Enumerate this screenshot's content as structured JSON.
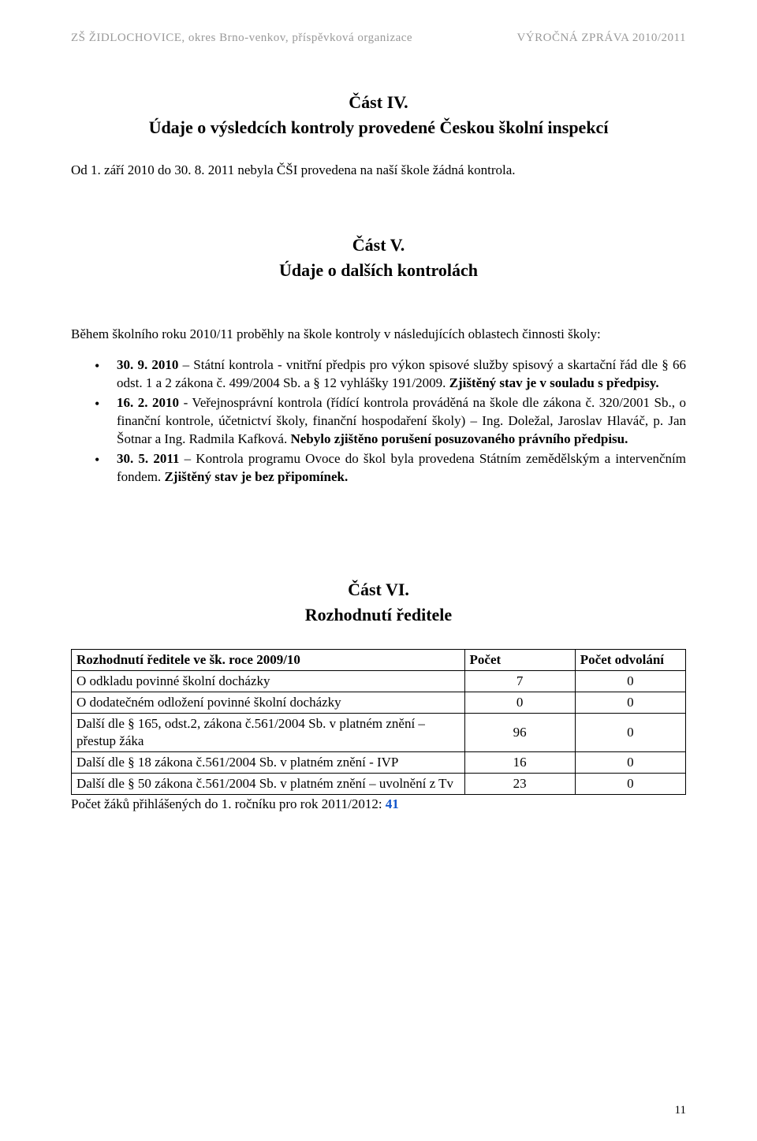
{
  "header": {
    "left": "ZŠ ŽIDLOCHOVICE, okres Brno-venkov, příspěvková organizace",
    "right": "VÝROČNÁ ZPRÁVA 2010/2011"
  },
  "section_iv": {
    "title": "Část IV.",
    "subtitle": "Údaje o výsledcích kontroly provedené Českou školní inspekcí",
    "body": "Od 1. září 2010 do 30. 8. 2011 nebyla ČŠI provedena na naší škole žádná kontrola."
  },
  "section_v": {
    "title": "Část V.",
    "subtitle": "Údaje o dalších kontrolách",
    "intro": "Během školního roku 2010/11 proběhly na škole kontroly v následujících oblastech činnosti školy:",
    "bullets": [
      {
        "prefix": "30. 9. 2010",
        "mid1": " – Státní kontrola - vnitřní předpis pro výkon spisové služby spisový a skartační řád dle § 66 odst. 1 a 2 zákona č. 499/2004 Sb. a § 12 vyhlášky 191/2009. ",
        "bold1": "Zjištěný stav je v souladu s předpisy.",
        "tail": ""
      },
      {
        "prefix": "16. 2. 2010",
        "mid1": " - Veřejnosprávní kontrola (řídící kontrola prováděná na škole dle zákona č. 320/2001 Sb., o finanční kontrole, účetnictví školy, finanční hospodaření školy) – Ing. Doležal, Jaroslav Hlaváč, p. Jan Šotnar a Ing. Radmila Kafková. ",
        "bold1": "Nebylo zjištěno porušení posuzovaného právního předpisu.",
        "tail": ""
      },
      {
        "prefix": "30. 5. 2011",
        "mid1": " – Kontrola programu Ovoce do škol byla provedena Státním zemědělským a intervenčním fondem. ",
        "bold1": "Zjištěný stav je bez připomínek.",
        "tail": ""
      }
    ]
  },
  "section_vi": {
    "title": "Část VI.",
    "subtitle": "Rozhodnutí ředitele",
    "table": {
      "columns": [
        "Rozhodnutí ředitele ve šk. roce 2009/10",
        "Počet",
        "Počet odvolání"
      ],
      "col_widths": [
        "64%",
        "18%",
        "18%"
      ],
      "rows": [
        [
          "O odkladu povinné školní docházky",
          "7",
          "0"
        ],
        [
          "O dodatečném odložení povinné školní docházky",
          "0",
          "0"
        ],
        [
          "Další dle § 165, odst.2, zákona č.561/2004 Sb. v platném znění – přestup žáka",
          "96",
          "0"
        ],
        [
          "Další dle § 18 zákona č.561/2004 Sb. v platném znění - IVP",
          "16",
          "0"
        ],
        [
          "Další dle § 50 zákona č.561/2004 Sb. v platném znění – uvolnění z Tv",
          "23",
          "0"
        ]
      ]
    },
    "footnote_label": "Počet žáků přihlášených do 1. ročníku pro rok 2011/2012:  ",
    "footnote_value": "41"
  },
  "page_number": "11"
}
